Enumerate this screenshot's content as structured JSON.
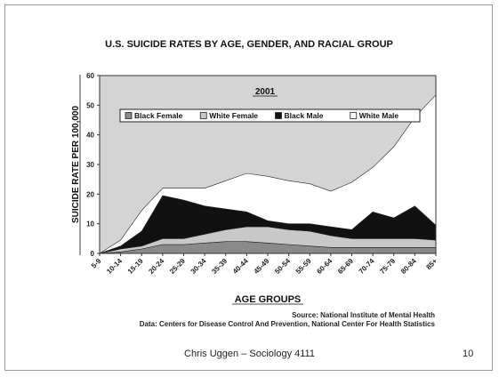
{
  "slide": {
    "author": "Chris Uggen – Sociology 4111",
    "page_number": "10"
  },
  "source": {
    "line1": "Source: National Institute of Mental Health",
    "line2": "Data: Centers for Disease Control And Prevention, National Center For Health Statistics"
  },
  "colors": {
    "plot_background": "#d4d4d4",
    "white_male": "#ffffff",
    "black_male": "#111111",
    "white_female": "#c8c8c8",
    "black_female": "#8a8a8a"
  },
  "chart_data": {
    "type": "area",
    "stacked": true,
    "title": "U.S. SUICIDE RATES BY AGE, GENDER, AND RACIAL GROUP",
    "subtitle": "2001",
    "xlabel": "AGE GROUPS",
    "ylabel": "SUICIDE RATE PER 100,000",
    "ylim": [
      0,
      60
    ],
    "yticks": [
      0,
      10,
      20,
      30,
      40,
      50,
      60
    ],
    "grid": false,
    "legend_position": "top",
    "categories": [
      "5-9",
      "10-14",
      "15-19",
      "20-24",
      "25-29",
      "30-34",
      "35-39",
      "40-44",
      "45-49",
      "50-54",
      "55-59",
      "60-64",
      "65-69",
      "70-74",
      "75-79",
      "80-84",
      "85+"
    ],
    "series": [
      {
        "name": "Black Female",
        "values": [
          0,
          0.5,
          1.5,
          3,
          3,
          3.5,
          4,
          4,
          3.5,
          3,
          2.5,
          2,
          2,
          2,
          2,
          2,
          2
        ]
      },
      {
        "name": "White Female",
        "values": [
          0,
          1,
          1,
          2,
          2,
          3,
          4,
          5,
          5.5,
          5,
          5,
          4,
          3,
          3,
          3,
          3,
          2.5
        ]
      },
      {
        "name": "Black Male",
        "values": [
          0,
          1,
          5,
          14.5,
          13,
          9.5,
          7,
          5,
          2,
          2,
          2.5,
          3,
          3,
          9,
          7,
          11,
          5
        ]
      },
      {
        "name": "White Male",
        "values": [
          0,
          2,
          7,
          2.5,
          4,
          6,
          9.5,
          13,
          15,
          14.5,
          13.5,
          12,
          16,
          15,
          24,
          30,
          44
        ]
      }
    ]
  }
}
